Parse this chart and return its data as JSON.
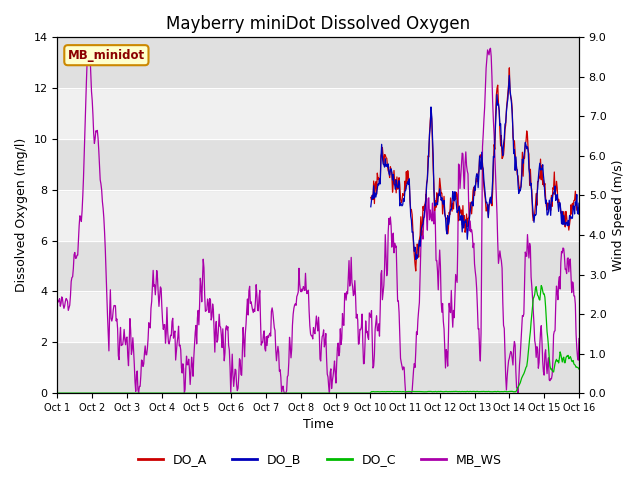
{
  "title": "Mayberry miniDot Dissolved Oxygen",
  "xlabel": "Time",
  "ylabel_left": "Dissolved Oxygen (mg/l)",
  "ylabel_right": "Wind Speed (m/s)",
  "ylim_left": [
    0,
    14
  ],
  "ylim_right": [
    0.0,
    9.0
  ],
  "yticks_left": [
    0,
    2,
    4,
    6,
    8,
    10,
    12,
    14
  ],
  "yticks_right": [
    0.0,
    1.0,
    2.0,
    3.0,
    4.0,
    5.0,
    6.0,
    7.0,
    8.0,
    9.0
  ],
  "xtick_labels": [
    "Oct 1",
    "Oct 2",
    "Oct 3",
    "Oct 4",
    "Oct 5",
    "Oct 6",
    "Oct 7",
    "Oct 8",
    "Oct 9",
    "Oct 10",
    "Oct 11",
    "Oct 12",
    "Oct 13",
    "Oct 14",
    "Oct 15",
    "Oct 16"
  ],
  "color_DO_A": "#cc0000",
  "color_DO_B": "#0000bb",
  "color_DO_C": "#00bb00",
  "color_MB_WS": "#aa00aa",
  "color_grid_band_dark": "#e0e0e0",
  "color_grid_band_light": "#f0f0f0",
  "annotation_text": "MB_minidot",
  "annotation_bg": "#ffffcc",
  "annotation_border": "#cc8800",
  "legend_labels": [
    "DO_A",
    "DO_B",
    "DO_C",
    "MB_WS"
  ],
  "title_fontsize": 12,
  "axis_fontsize": 9,
  "tick_fontsize": 8,
  "linewidth": 0.9
}
